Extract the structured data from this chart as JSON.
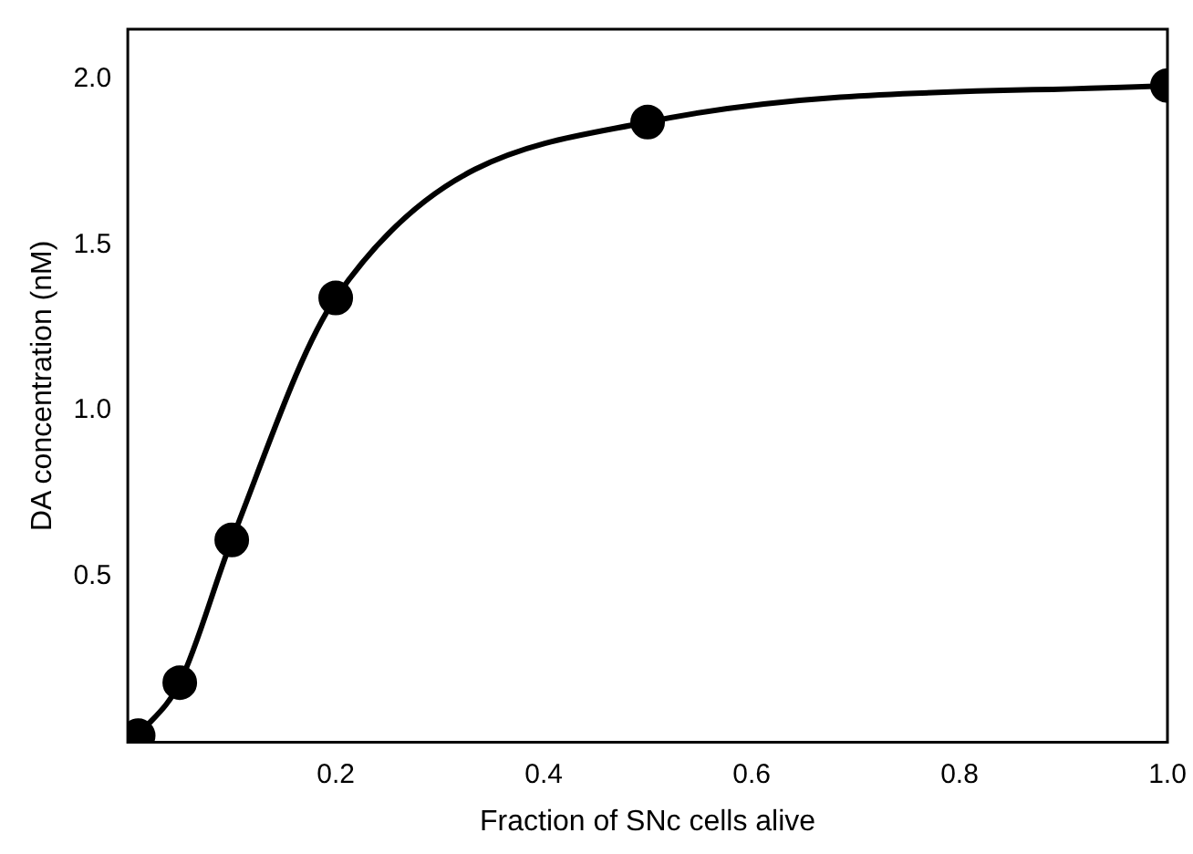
{
  "chart_data": {
    "type": "line",
    "xlabel": "Fraction of SNc cells alive",
    "ylabel": "DA concentration (nM)",
    "x": [
      0.01,
      0.05,
      0.1,
      0.2,
      0.5,
      1.0
    ],
    "series": [
      {
        "color": "#000000",
        "values": [
          0.02,
          0.18,
          0.61,
          1.34,
          1.87,
          1.98
        ]
      }
    ],
    "xlim": [
      0,
      1.0
    ],
    "ylim": [
      0,
      2.15
    ],
    "xticks": [
      0.2,
      0.4,
      0.6,
      0.8,
      {
        "value": 1,
        "label": "1.0"
      }
    ],
    "yticks": [
      0.5,
      {
        "value": 1,
        "label": "1.0"
      },
      1.5,
      {
        "value": 2,
        "label": "2.0"
      }
    ],
    "grid": false,
    "legend": false,
    "marker": "circle",
    "line_style": "solid"
  }
}
